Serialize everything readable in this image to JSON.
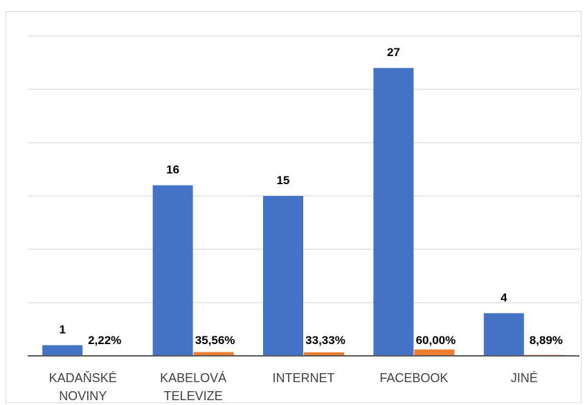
{
  "chart_data": {
    "type": "bar",
    "categories": [
      [
        "KADAŇSKÉ",
        "NOVINY"
      ],
      [
        "KABELOVÁ",
        "TELEVIZE"
      ],
      [
        "INTERNET"
      ],
      [
        "FACEBOOK"
      ],
      [
        "JINÉ"
      ]
    ],
    "series": [
      {
        "values": [
          1,
          16,
          15,
          27,
          4
        ],
        "labels": [
          "1",
          "16",
          "15",
          "27",
          "4"
        ],
        "color": "#4472c4"
      },
      {
        "values": [
          0.0222,
          0.3556,
          0.3333,
          0.6,
          0.0889
        ],
        "labels": [
          "2,22%",
          "35,56%",
          "33,33%",
          "60,00%",
          "8,89%"
        ],
        "color": "#ed7d31"
      }
    ],
    "ylim": [
      0,
      30
    ],
    "grid": true,
    "title": "",
    "xlabel": "",
    "ylabel": ""
  }
}
